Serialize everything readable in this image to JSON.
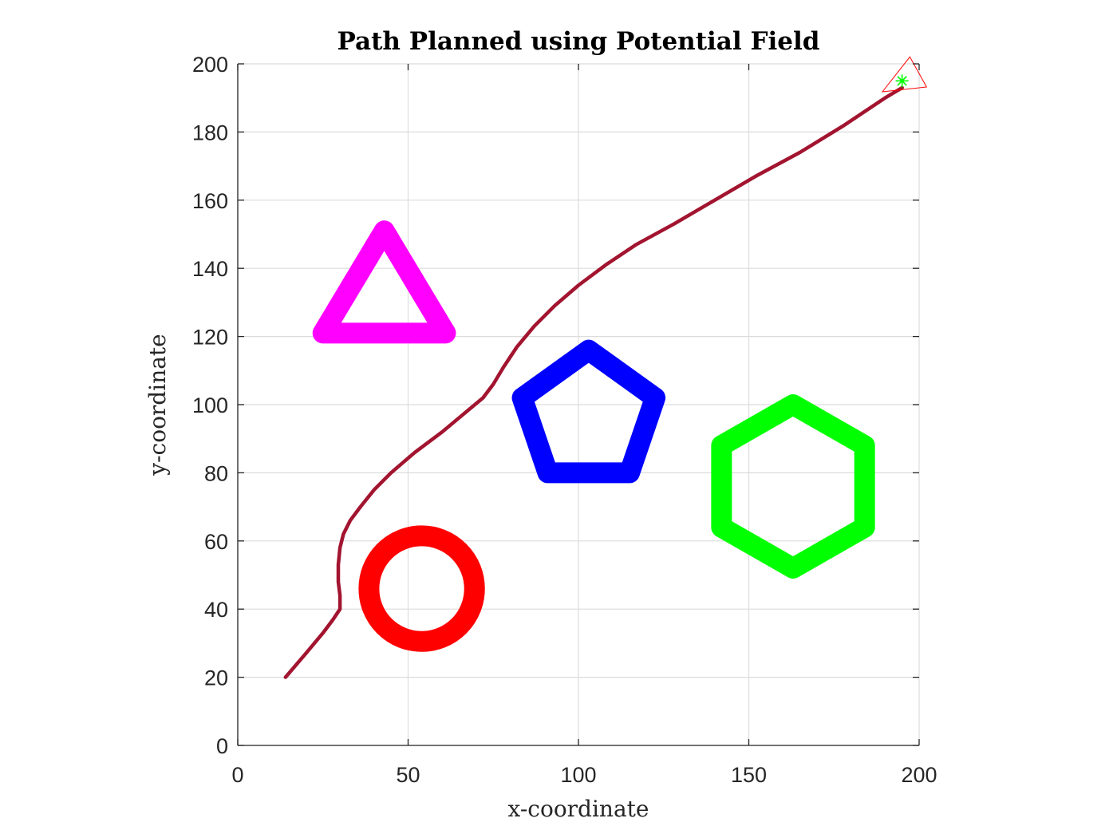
{
  "chart_data": {
    "type": "line",
    "title": "Path Planned using Potential Field",
    "xlabel": "x-coordinate",
    "ylabel": "y-coordinate",
    "xlim": [
      0,
      200
    ],
    "ylim": [
      0,
      200
    ],
    "xticks": [
      0,
      50,
      100,
      150,
      200
    ],
    "yticks": [
      0,
      20,
      40,
      60,
      80,
      100,
      120,
      140,
      160,
      180,
      200
    ],
    "grid": true,
    "path": {
      "color": "#a2142f",
      "x": [
        14,
        20,
        25,
        28,
        30,
        30,
        29.5,
        29.5,
        30,
        31,
        33,
        36,
        40,
        45,
        52,
        60,
        66,
        72,
        75,
        78,
        82,
        87,
        93,
        100,
        108,
        117,
        128,
        140,
        152,
        165,
        178,
        190,
        195
      ],
      "y": [
        20,
        27,
        33,
        37,
        40,
        44,
        48,
        53,
        58,
        62,
        66,
        70,
        75,
        80,
        86,
        92,
        97,
        102,
        106,
        111,
        117,
        123,
        129,
        135,
        141,
        147,
        153,
        160,
        167,
        174,
        182,
        190,
        193
      ]
    },
    "goal": {
      "x": 195,
      "y": 195,
      "color": "#00ff00",
      "marker": "asterisk"
    },
    "heading_arrow": {
      "x": 195,
      "y": 195,
      "angle_deg": 29,
      "length": 12,
      "color": "#ff0000"
    },
    "obstacles": [
      {
        "shape": "circle",
        "color": "#ff0000",
        "center": [
          54,
          46
        ],
        "radius": 15.5
      },
      {
        "shape": "triangle",
        "color": "#ff00ff",
        "vertices": [
          [
            43,
            151
          ],
          [
            25,
            121
          ],
          [
            61,
            121
          ]
        ]
      },
      {
        "shape": "pentagon",
        "color": "#0000ff",
        "vertices": [
          [
            103,
            116
          ],
          [
            122.5,
            102
          ],
          [
            115,
            80
          ],
          [
            91,
            80
          ],
          [
            83.5,
            102
          ]
        ]
      },
      {
        "shape": "hexagon",
        "color": "#00ff00",
        "vertices": [
          [
            163,
            100
          ],
          [
            184,
            88
          ],
          [
            184,
            64
          ],
          [
            163,
            52
          ],
          [
            142,
            64
          ],
          [
            142,
            88
          ]
        ]
      }
    ]
  }
}
